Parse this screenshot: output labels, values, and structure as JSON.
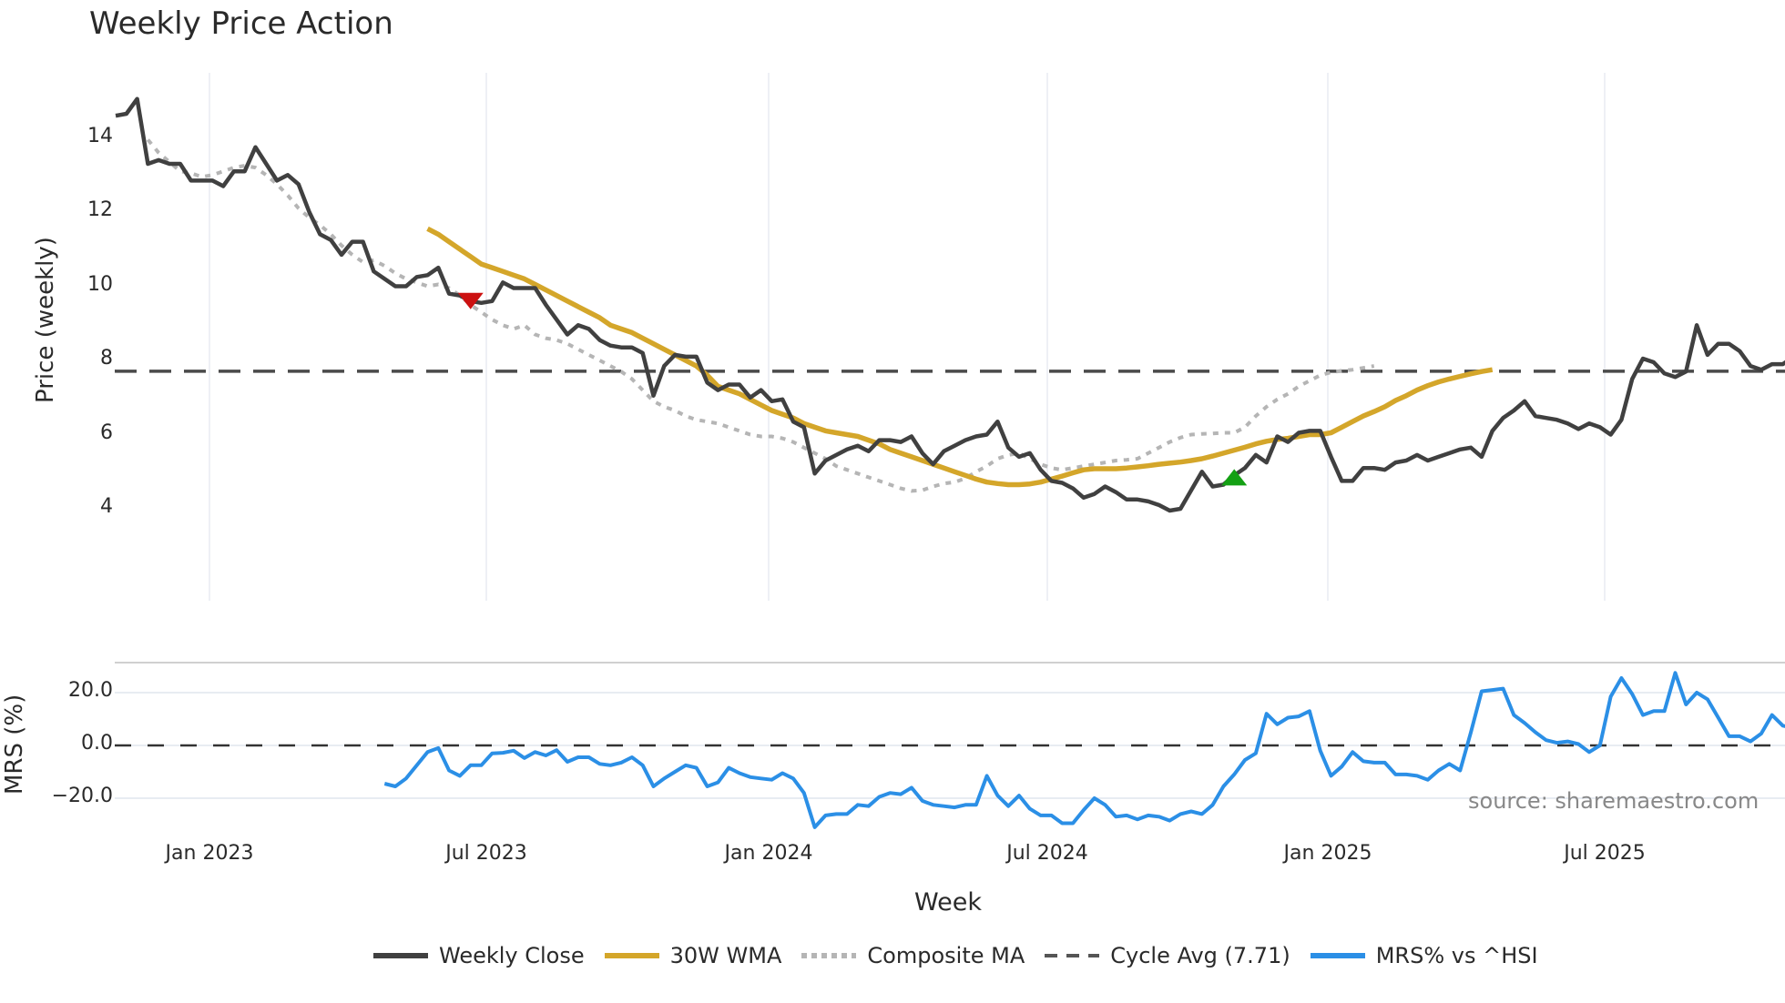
{
  "title": "Weekly Price Action",
  "price_panel": {
    "ylabel": "Price (weekly)",
    "yticks": [
      "4",
      "6",
      "8",
      "10",
      "12",
      "14"
    ]
  },
  "mrs_panel": {
    "ylabel": "MRS (%)",
    "yticks": [
      "−20.0",
      "0.0",
      "20.0"
    ]
  },
  "xaxis": {
    "label": "Week",
    "ticks": [
      "Jan 2023",
      "Jul 2023",
      "Jan 2024",
      "Jul 2024",
      "Jan 2025",
      "Jul 2025"
    ]
  },
  "source": "source: sharemaestro.com",
  "legend": [
    {
      "label": "Weekly Close",
      "color": "#404040",
      "style": "solid"
    },
    {
      "label": "30W WMA",
      "color": "#d4a62a",
      "style": "solid"
    },
    {
      "label": "Composite MA",
      "color": "#b5b5b5",
      "style": "dotted"
    },
    {
      "label": "Cycle Avg (7.71)",
      "color": "#555555",
      "style": "dashed"
    },
    {
      "label": "MRS% vs ^HSI",
      "color": "#2b8fe6",
      "style": "solid"
    }
  ],
  "colors": {
    "close": "#404040",
    "wma": "#d4a62a",
    "composite": "#b5b5b5",
    "cycle": "#4a4a4a",
    "mrs": "#2b8fe6",
    "sell_marker": "#cc1111",
    "buy_marker": "#14a014",
    "grid": "#e8ecf2"
  },
  "chart_data": [
    {
      "type": "line",
      "title": "Weekly Price Action",
      "xlabel": "Week",
      "ylabel": "Price (weekly)",
      "ylim": [
        3.3,
        15.5
      ],
      "x_start": "2022-10-31",
      "x_step": "1 week",
      "xticks": [
        "Jan 2023",
        "Jul 2023",
        "Jan 2024",
        "Jul 2024",
        "Jan 2025",
        "Jul 2025"
      ],
      "yticks": [
        4,
        6,
        8,
        10,
        12,
        14
      ],
      "grid": true,
      "legend_position": "bottom",
      "series": [
        {
          "name": "Weekly Close",
          "start_index": 0,
          "values": [
            14.6,
            14.65,
            15.05,
            13.3,
            13.4,
            13.3,
            13.3,
            12.85,
            12.85,
            12.85,
            12.7,
            13.1,
            13.1,
            13.75,
            13.3,
            12.85,
            13.0,
            12.75,
            12.0,
            11.4,
            11.25,
            10.85,
            11.2,
            11.2,
            10.4,
            10.2,
            10.0,
            10.0,
            10.25,
            10.3,
            10.5,
            9.8,
            9.75,
            9.6,
            9.55,
            9.6,
            10.1,
            9.95,
            9.95,
            9.95,
            9.5,
            9.1,
            8.7,
            8.95,
            8.85,
            8.55,
            8.4,
            8.35,
            8.35,
            8.2,
            7.05,
            7.85,
            8.15,
            8.1,
            8.1,
            7.4,
            7.2,
            7.35,
            7.35,
            7.0,
            7.2,
            6.9,
            6.95,
            6.35,
            6.2,
            4.95,
            5.3,
            5.45,
            5.6,
            5.7,
            5.55,
            5.85,
            5.85,
            5.8,
            5.95,
            5.5,
            5.2,
            5.55,
            5.7,
            5.85,
            5.95,
            6.0,
            6.35,
            5.65,
            5.4,
            5.5,
            5.05,
            4.75,
            4.7,
            4.55,
            4.3,
            4.4,
            4.6,
            4.45,
            4.25,
            4.25,
            4.2,
            4.1,
            3.95,
            4.0,
            4.5,
            5.0,
            4.6,
            4.65,
            4.9,
            5.1,
            5.45,
            5.25,
            5.95,
            5.8,
            6.05,
            6.1,
            6.1,
            5.4,
            4.75,
            4.75,
            5.1,
            5.1,
            5.05,
            5.25,
            5.3,
            5.45,
            5.3,
            5.4,
            5.5,
            5.6,
            5.65,
            5.4,
            6.1,
            6.45,
            6.65,
            6.9,
            6.5,
            6.45,
            6.4,
            6.3,
            6.15,
            6.3,
            6.2,
            6.0,
            6.4,
            7.5,
            8.05,
            7.95,
            7.65,
            7.55,
            7.7,
            8.95,
            8.15,
            8.45,
            8.45,
            8.25,
            7.85,
            7.75,
            7.9,
            7.9,
            8.1,
            8.1,
            8.2
          ]
        },
        {
          "name": "30W WMA",
          "start_index": 29,
          "values": [
            11.55,
            11.4,
            11.2,
            11.0,
            10.8,
            10.6,
            10.5,
            10.4,
            10.3,
            10.2,
            10.05,
            9.9,
            9.75,
            9.6,
            9.45,
            9.3,
            9.15,
            8.95,
            8.85,
            8.75,
            8.6,
            8.45,
            8.3,
            8.15,
            8.0,
            7.85,
            7.6,
            7.3,
            7.2,
            7.1,
            6.95,
            6.8,
            6.65,
            6.55,
            6.45,
            6.3,
            6.2,
            6.1,
            6.05,
            6.0,
            5.95,
            5.85,
            5.75,
            5.6,
            5.5,
            5.4,
            5.3,
            5.2,
            5.1,
            5.0,
            4.9,
            4.8,
            4.72,
            4.68,
            4.65,
            4.65,
            4.67,
            4.72,
            4.8,
            4.88,
            4.97,
            5.05,
            5.08,
            5.08,
            5.08,
            5.1,
            5.13,
            5.16,
            5.2,
            5.23,
            5.26,
            5.3,
            5.35,
            5.42,
            5.5,
            5.58,
            5.66,
            5.75,
            5.82,
            5.87,
            5.9,
            5.95,
            6.0,
            6.0,
            6.05,
            6.2,
            6.35,
            6.5,
            6.62,
            6.75,
            6.92,
            7.05,
            7.2,
            7.32,
            7.42,
            7.5,
            7.57,
            7.64,
            7.7,
            7.75
          ]
        },
        {
          "name": "Composite MA",
          "start_index": 3,
          "values": [
            13.95,
            13.6,
            13.35,
            13.1,
            13.05,
            12.95,
            13.0,
            13.1,
            13.2,
            13.25,
            13.2,
            13.0,
            12.75,
            12.45,
            12.1,
            11.85,
            11.65,
            11.4,
            11.1,
            10.85,
            10.65,
            10.7,
            10.55,
            10.35,
            10.2,
            10.1,
            10.0,
            10.05,
            9.95,
            9.75,
            9.5,
            9.3,
            9.1,
            8.95,
            8.85,
            8.95,
            8.7,
            8.6,
            8.55,
            8.45,
            8.3,
            8.15,
            8.0,
            7.85,
            7.7,
            7.5,
            7.2,
            6.9,
            6.75,
            6.65,
            6.5,
            6.4,
            6.35,
            6.3,
            6.2,
            6.1,
            6.0,
            5.95,
            5.95,
            5.9,
            5.8,
            5.65,
            5.5,
            5.35,
            5.15,
            5.05,
            4.95,
            4.85,
            4.75,
            4.65,
            4.55,
            4.48,
            4.5,
            4.6,
            4.68,
            4.72,
            4.82,
            5.0,
            5.15,
            5.35,
            5.45,
            5.5,
            5.35,
            5.2,
            5.1,
            5.05,
            5.1,
            5.15,
            5.2,
            5.25,
            5.3,
            5.32,
            5.35,
            5.5,
            5.65,
            5.8,
            5.92,
            6.0,
            6.02,
            6.03,
            6.05,
            6.05,
            6.2,
            6.5,
            6.75,
            6.95,
            7.1,
            7.3,
            7.45,
            7.6,
            7.68,
            7.72,
            7.75,
            7.8,
            7.85
          ]
        },
        {
          "name": "Cycle Avg (7.71)",
          "type": "hline",
          "value": 7.71
        }
      ],
      "markers": [
        {
          "type": "sell",
          "shape": "triangle-down",
          "index": 33,
          "value": 9.6,
          "color": "#cc1111"
        },
        {
          "type": "buy",
          "shape": "triangle-up",
          "index": 104,
          "value": 4.85,
          "color": "#14a014"
        }
      ]
    },
    {
      "type": "line",
      "title": "",
      "xlabel": "Week",
      "ylabel": "MRS (%)",
      "ylim": [
        -32,
        30
      ],
      "yticks": [
        -20.0,
        0.0,
        20.0
      ],
      "hline": 0.0,
      "series": [
        {
          "name": "MRS% vs ^HSI",
          "start_index": 25,
          "values": [
            -14.5,
            -15.5,
            -12.5,
            -7.5,
            -2.5,
            -1.0,
            -9.5,
            -11.5,
            -7.5,
            -7.5,
            -3.0,
            -2.8,
            -2.0,
            -4.8,
            -2.5,
            -3.8,
            -1.8,
            -6.2,
            -4.5,
            -4.5,
            -7.0,
            -7.5,
            -6.5,
            -4.5,
            -7.5,
            -15.5,
            -12.5,
            -10.0,
            -7.5,
            -8.5,
            -15.5,
            -14.0,
            -8.5,
            -10.5,
            -12.0,
            -12.5,
            -13.0,
            -10.5,
            -12.5,
            -18.0,
            -31.0,
            -26.5,
            -26.0,
            -26.0,
            -22.5,
            -23.0,
            -19.5,
            -18.0,
            -18.5,
            -16.0,
            -21.0,
            -22.5,
            -23.0,
            -23.5,
            -22.5,
            -22.5,
            -11.5,
            -19.0,
            -23.0,
            -19.0,
            -24.0,
            -26.5,
            -26.5,
            -29.5,
            -29.5,
            -24.5,
            -20.0,
            -22.5,
            -27.0,
            -26.5,
            -28.0,
            -26.5,
            -27.0,
            -28.5,
            -26.0,
            -25.0,
            -26.0,
            -22.5,
            -15.5,
            -11.0,
            -5.5,
            -3.0,
            12.0,
            8.0,
            10.5,
            11.0,
            13.0,
            -2.0,
            -11.5,
            -8.0,
            -2.5,
            -6.0,
            -6.5,
            -6.5,
            -11.0,
            -11.0,
            -11.5,
            -13.0,
            -9.5,
            -7.0,
            -9.5,
            5.0,
            20.5,
            21.0,
            21.5,
            11.5,
            8.5,
            5.0,
            2.0,
            1.0,
            1.5,
            0.5,
            -2.5,
            0.0,
            18.5,
            25.5,
            19.5,
            11.5,
            13.0,
            13.0,
            27.5,
            15.5,
            20.0,
            17.5,
            10.5,
            3.5,
            3.5,
            1.5,
            4.5,
            11.5,
            7.5,
            6.5
          ]
        }
      ]
    }
  ]
}
